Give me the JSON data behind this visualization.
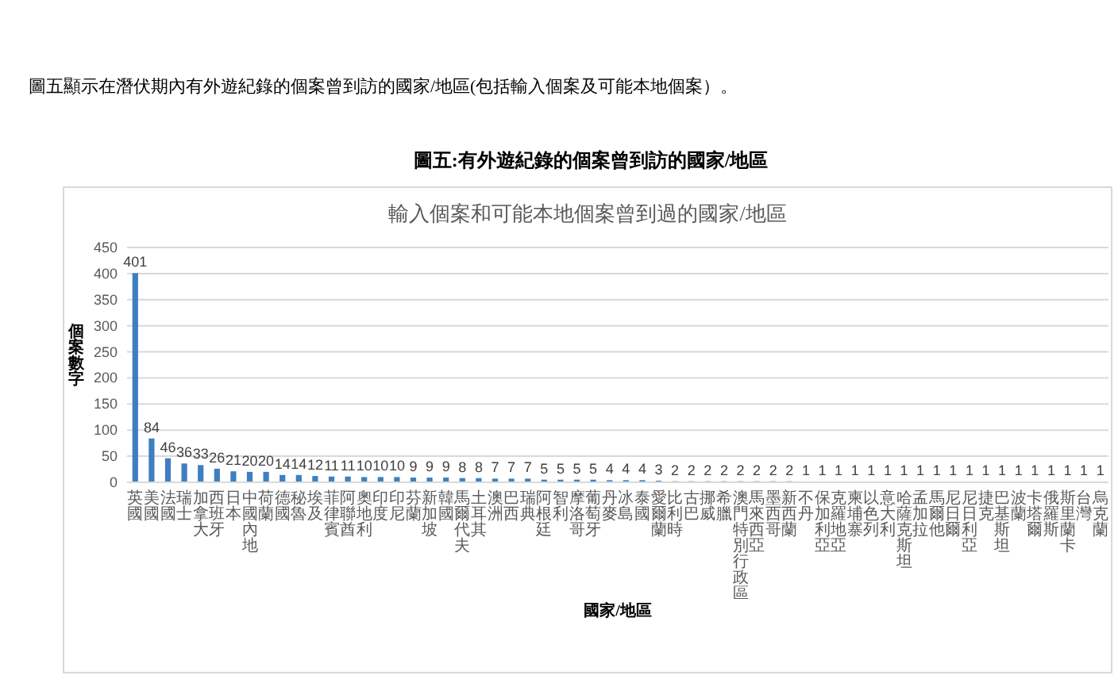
{
  "chart_data": {
    "type": "bar",
    "annotations": [
      "圖五顯示在潛伏期內有外遊紀錄的個案曾到訪的國家/地區(包括輸入個案及可能本地個案）。"
    ],
    "title": "圖五:有外遊紀錄的個案曾到訪的國家/地區",
    "subtitle": "輸入個案和可能本地個案曾到過的國家/地區",
    "xlabel": "國家/地區",
    "ylabel": "個案數字",
    "categories": [
      "英國",
      "美國",
      "法國",
      "瑞士",
      "加拿大",
      "西班牙",
      "日本",
      "中國內地",
      "荷蘭",
      "德國",
      "秘魯",
      "埃及",
      "菲律賓",
      "阿聯酋",
      "奧地利",
      "印度",
      "印尼",
      "芬蘭",
      "新加坡",
      "韓國",
      "馬爾代夫",
      "土耳其",
      "澳洲",
      "巴西",
      "瑞典",
      "阿根廷",
      "智利",
      "摩洛哥",
      "葡萄牙",
      "丹麥",
      "冰島",
      "泰國",
      "愛爾蘭",
      "比利時",
      "古巴",
      "挪威",
      "希臘",
      "澳門特別行政區",
      "馬來西亞",
      "墨西哥",
      "新西蘭",
      "不丹",
      "保加利亞",
      "克羅地亞",
      "柬埔寨",
      "以色列",
      "意大利",
      "哈薩克斯坦",
      "孟加拉",
      "馬爾他",
      "尼日爾",
      "尼日利亞",
      "捷克",
      "巴基斯坦",
      "波蘭",
      "卡塔爾",
      "俄羅斯",
      "斯里蘭卡",
      "台灣",
      "烏克蘭"
    ],
    "values": [
      401,
      84,
      46,
      36,
      33,
      26,
      21,
      20,
      20,
      14,
      14,
      12,
      11,
      11,
      10,
      10,
      10,
      9,
      9,
      9,
      8,
      8,
      7,
      7,
      7,
      5,
      5,
      5,
      5,
      4,
      4,
      4,
      3,
      2,
      2,
      2,
      2,
      2,
      2,
      2,
      2,
      1,
      1,
      1,
      1,
      1,
      1,
      1,
      1,
      1,
      1,
      1,
      1,
      1,
      1,
      1,
      1,
      1,
      1,
      1
    ],
    "color": "#3f7fc0",
    "ylim": [
      0,
      450
    ],
    "yticks": [
      0,
      50,
      100,
      150,
      200,
      250,
      300,
      350,
      400,
      450
    ],
    "grid": "y",
    "data_labels": true
  }
}
